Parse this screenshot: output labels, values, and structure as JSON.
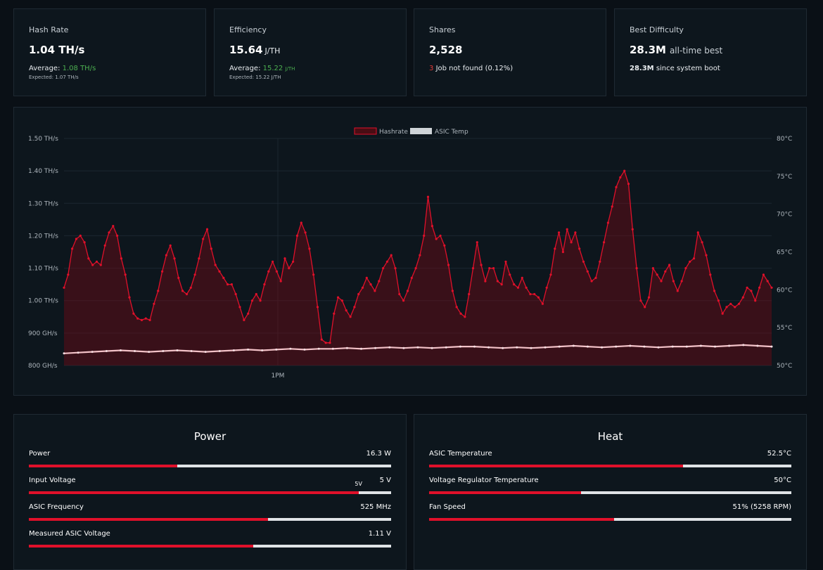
{
  "stats": [
    {
      "title": "Hash Rate",
      "value": "1.04",
      "unit": "TH/s",
      "avg_label": "Average:",
      "avg_value": "1.08",
      "avg_unit": "TH/s",
      "sub": "Expected: 1.07 TH/s"
    },
    {
      "title": "Efficiency",
      "value": "15.64",
      "unit": "J/TH",
      "avg_label": "Average:",
      "avg_value": "15.22",
      "avg_unit": "J/TH",
      "sub": "Expected: 15.22 J/TH"
    },
    {
      "title": "Shares",
      "value": "2,528",
      "reject_count": "3",
      "reject_text": "Job not found",
      "reject_pct": "(0.12%)"
    },
    {
      "title": "Best Difficulty",
      "value": "28.3M",
      "suffix": "all-time best",
      "line_value": "28.3M",
      "line_text": "since system boot"
    }
  ],
  "colors": {
    "accent": "#e0102a",
    "positive": "#4caf50",
    "track": "#dfe3e6",
    "temp_line": "#f3c2c8"
  },
  "chart_data": {
    "type": "line",
    "legend": [
      "Hashrate",
      "ASIC Temp"
    ],
    "legend_position": "top",
    "x_tick_labels": [
      "1PM"
    ],
    "y_left_ticks": [
      "800 GH/s",
      "900 GH/s",
      "1.00 TH/s",
      "1.10 TH/s",
      "1.20 TH/s",
      "1.30 TH/s",
      "1.40 TH/s",
      "1.50 TH/s"
    ],
    "y_right_ticks": [
      "50°C",
      "55°C",
      "60°C",
      "65°C",
      "70°C",
      "75°C",
      "80°C"
    ],
    "ylim_left": [
      0.8,
      1.5
    ],
    "ylim_right": [
      50,
      80
    ],
    "series": [
      {
        "name": "Hashrate",
        "unit": "TH/s",
        "values": [
          1.04,
          1.08,
          1.16,
          1.19,
          1.2,
          1.18,
          1.13,
          1.11,
          1.12,
          1.11,
          1.17,
          1.21,
          1.23,
          1.2,
          1.13,
          1.08,
          1.01,
          0.96,
          0.945,
          0.94,
          0.945,
          0.94,
          0.99,
          1.03,
          1.09,
          1.14,
          1.17,
          1.13,
          1.07,
          1.03,
          1.02,
          1.04,
          1.08,
          1.13,
          1.19,
          1.22,
          1.16,
          1.11,
          1.09,
          1.07,
          1.05,
          1.05,
          1.02,
          0.98,
          0.94,
          0.96,
          1.0,
          1.02,
          1.0,
          1.05,
          1.09,
          1.12,
          1.09,
          1.06,
          1.13,
          1.1,
          1.12,
          1.2,
          1.24,
          1.21,
          1.16,
          1.08,
          0.98,
          0.88,
          0.87,
          0.87,
          0.96,
          1.01,
          1.0,
          0.97,
          0.95,
          0.98,
          1.02,
          1.04,
          1.07,
          1.05,
          1.03,
          1.06,
          1.1,
          1.12,
          1.14,
          1.1,
          1.02,
          1.0,
          1.03,
          1.07,
          1.1,
          1.14,
          1.2,
          1.32,
          1.23,
          1.19,
          1.2,
          1.17,
          1.11,
          1.03,
          0.98,
          0.96,
          0.95,
          1.02,
          1.1,
          1.18,
          1.11,
          1.06,
          1.1,
          1.1,
          1.06,
          1.05,
          1.12,
          1.08,
          1.05,
          1.04,
          1.07,
          1.04,
          1.02,
          1.02,
          1.01,
          0.99,
          1.04,
          1.08,
          1.16,
          1.21,
          1.15,
          1.22,
          1.18,
          1.21,
          1.16,
          1.12,
          1.09,
          1.06,
          1.07,
          1.12,
          1.18,
          1.24,
          1.29,
          1.35,
          1.38,
          1.4,
          1.36,
          1.22,
          1.1,
          1.0,
          0.98,
          1.01,
          1.1,
          1.08,
          1.06,
          1.09,
          1.11,
          1.06,
          1.03,
          1.06,
          1.1,
          1.12,
          1.13,
          1.21,
          1.18,
          1.14,
          1.08,
          1.03,
          1.0,
          0.96,
          0.98,
          0.99,
          0.98,
          0.99,
          1.01,
          1.04,
          1.03,
          1.0,
          1.04,
          1.08,
          1.06,
          1.04
        ]
      },
      {
        "name": "ASIC Temp",
        "unit": "°C",
        "values": [
          51.6,
          51.7,
          51.8,
          51.9,
          52.0,
          51.9,
          51.8,
          51.9,
          52.0,
          51.9,
          51.8,
          51.9,
          52.0,
          52.1,
          52.0,
          52.1,
          52.2,
          52.1,
          52.2,
          52.2,
          52.3,
          52.2,
          52.3,
          52.4,
          52.3,
          52.4,
          52.3,
          52.4,
          52.5,
          52.5,
          52.4,
          52.3,
          52.4,
          52.3,
          52.4,
          52.5,
          52.6,
          52.5,
          52.4,
          52.5,
          52.6,
          52.5,
          52.4,
          52.5,
          52.5,
          52.6,
          52.5,
          52.6,
          52.7,
          52.6,
          52.5
        ]
      }
    ]
  },
  "power": {
    "title": "Power",
    "rows": [
      {
        "label": "Power",
        "value": "16.3 W",
        "fill": 0.41
      },
      {
        "label": "Input Voltage",
        "value": "5 V",
        "fill": 0.91,
        "marker_label": "5V",
        "marker": 0.91
      },
      {
        "label": "ASIC Frequency",
        "value": "525 MHz",
        "fill": 0.66
      },
      {
        "label": "Measured ASIC Voltage",
        "value": "1.11 V",
        "fill": 0.62
      }
    ]
  },
  "heat": {
    "title": "Heat",
    "rows": [
      {
        "label": "ASIC Temperature",
        "value": "52.5°C",
        "fill": 0.7
      },
      {
        "label": "Voltage Regulator Temperature",
        "value": "50°C",
        "fill": 0.42
      },
      {
        "label": "Fan Speed",
        "value": "51% (5258 RPM)",
        "fill": 0.51
      }
    ]
  }
}
